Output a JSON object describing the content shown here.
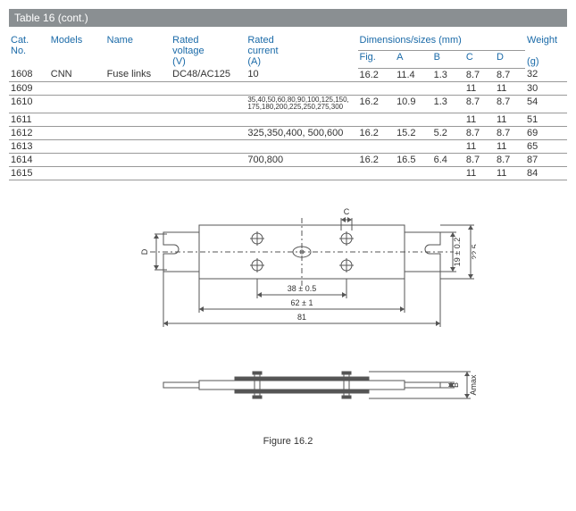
{
  "header": {
    "title": "Table 16 (cont.)"
  },
  "table": {
    "cols": {
      "cat": "Cat.\nNo.",
      "models": "Models",
      "name": "Name",
      "voltage_a": "Rated",
      "voltage_b": "voltage",
      "voltage_c": "(V)",
      "current_a": "Rated",
      "current_b": "current",
      "current_c": "(A)",
      "dims": "Dimensions/sizes (mm)",
      "fig": "Fig.",
      "A": "A",
      "B": "B",
      "C": "C",
      "D": "D",
      "weight_a": "Weight",
      "weight_b": "(g)"
    },
    "rows": [
      {
        "cat": "1608",
        "models": "CNN",
        "name": "Fuse links",
        "voltage": "DC48/AC125",
        "current": "10",
        "fig": "16.2",
        "A": "11.4",
        "B": "1.3",
        "C": "8.7",
        "D": "8.7",
        "wt": "32",
        "small": false
      },
      {
        "cat": "1609",
        "models": "",
        "name": "",
        "voltage": "",
        "current": "",
        "fig": "",
        "A": "",
        "B": "",
        "C": "11",
        "D": "11",
        "wt": "30",
        "small": false
      },
      {
        "cat": "1610",
        "models": "",
        "name": "",
        "voltage": "",
        "current": "35,40,50,60,80,90,100,125,150, 175,180,200,225,250,275,300",
        "fig": "16.2",
        "A": "10.9",
        "B": "1.3",
        "C": "8.7",
        "D": "8.7",
        "wt": "54",
        "small": true
      },
      {
        "cat": "1611",
        "models": "",
        "name": "",
        "voltage": "",
        "current": "",
        "fig": "",
        "A": "",
        "B": "",
        "C": "11",
        "D": "11",
        "wt": "51",
        "small": false
      },
      {
        "cat": "1612",
        "models": "",
        "name": "",
        "voltage": "",
        "current": "325,350,400, 500,600",
        "fig": "16.2",
        "A": "15.2",
        "B": "5.2",
        "C": "8.7",
        "D": "8.7",
        "wt": "69",
        "small": false
      },
      {
        "cat": "1613",
        "models": "",
        "name": "",
        "voltage": "",
        "current": "",
        "fig": "",
        "A": "",
        "B": "",
        "C": "11",
        "D": "11",
        "wt": "65",
        "small": false
      },
      {
        "cat": "1614",
        "models": "",
        "name": "",
        "voltage": "",
        "current": "700,800",
        "fig": "16.2",
        "A": "16.5",
        "B": "6.4",
        "C": "8.7",
        "D": "8.7",
        "wt": "87",
        "small": false
      },
      {
        "cat": "1615",
        "models": "",
        "name": "",
        "voltage": "",
        "current": "",
        "fig": "",
        "A": "",
        "B": "",
        "C": "11",
        "D": "11",
        "wt": "84",
        "small": false
      }
    ]
  },
  "figure": {
    "caption": "Figure 16.2",
    "labels": {
      "C": "C",
      "D": "D",
      "B": "B",
      "Amax": "Amax",
      "w38": "38 ± 0.5",
      "w62": "62 ± 1",
      "w81": "81",
      "h19": "19 ± 0.2",
      "h22": "22,5"
    },
    "colors": {
      "stroke": "#555555",
      "fill": "#ffffff",
      "dimstroke": "#555555",
      "text": "#333333"
    },
    "fontsize": 9,
    "linewidth": 1
  }
}
